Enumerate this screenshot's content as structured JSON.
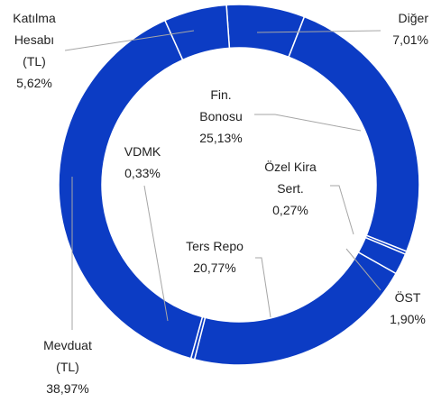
{
  "chart_data": {
    "type": "donut",
    "categories": [
      "Diğer",
      "Fin. Bonosu",
      "Özel Kira Sert.",
      "ÖST",
      "Ters Repo",
      "VDMK",
      "Mevduat (TL)",
      "Katılma Hesabı (TL)"
    ],
    "values": [
      7.01,
      25.13,
      0.27,
      1.9,
      20.77,
      0.33,
      38.97,
      5.62
    ],
    "value_labels": [
      "7,01%",
      "25,13%",
      "0,27%",
      "1,90%",
      "20,77%",
      "0,33%",
      "38,97%",
      "5,62%"
    ],
    "color": "#0c3cc4"
  }
}
